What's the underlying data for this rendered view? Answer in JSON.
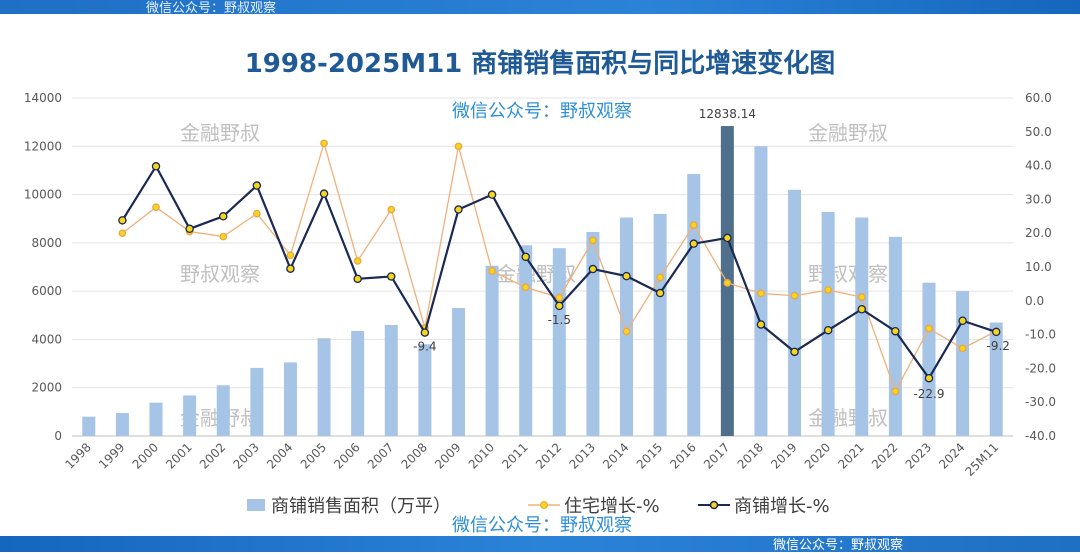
{
  "watermarks": {
    "top_bar": "微信公众号：野叔观察",
    "bottom_bar": "微信公众号：野叔观察",
    "center_top": "微信公众号：野叔观察",
    "center_bottom": "微信公众号：野叔观察",
    "grey_1": "金融野叔",
    "grey_2": "金融野叔",
    "grey_3": "野叔观察",
    "grey_4": "野叔观察",
    "grey_5": "金融野叔",
    "grey_6": "金融野叔",
    "grey_7": "金融野叔"
  },
  "colors": {
    "bar": "#a5c4e6",
    "bar_highlight": "#4f6f8c",
    "residential_line": "#f0b07a",
    "residential_marker": "#f7d51a",
    "commercial_line": "#1b2a52",
    "commercial_marker": "#f7d51a",
    "title": "#1f5a96"
  },
  "chart_data": {
    "type": "bar+line",
    "title": "1998-2025M11 商铺销售面积与同比增速变化图",
    "categories": [
      "1998",
      "1999",
      "2000",
      "2001",
      "2002",
      "2003",
      "2004",
      "2005",
      "2006",
      "2007",
      "2008",
      "2009",
      "2010",
      "2011",
      "2012",
      "2013",
      "2014",
      "2015",
      "2016",
      "2017",
      "2018",
      "2019",
      "2020",
      "2021",
      "2022",
      "2023",
      "2024",
      "25M11"
    ],
    "left_axis": {
      "ylim": [
        0,
        14000
      ],
      "ticks": [
        "0",
        "2000",
        "4000",
        "6000",
        "8000",
        "10000",
        "12000",
        "14000"
      ]
    },
    "right_axis": {
      "ylim": [
        -40,
        60
      ],
      "ticks": [
        "-40.0",
        "-30.0",
        "-20.0",
        "-10.0",
        "0.0",
        "10.0",
        "20.0",
        "30.0",
        "40.0",
        "50.0",
        "60.0"
      ]
    },
    "series": [
      {
        "name": "商铺销售面积（万平）",
        "kind": "bar",
        "axis": "left",
        "values": [
          800,
          950,
          1380,
          1680,
          2100,
          2820,
          3050,
          4050,
          4350,
          4600,
          3800,
          5300,
          7050,
          7900,
          7780,
          8450,
          9050,
          9200,
          10850,
          12838.14,
          12000,
          10200,
          9280,
          9050,
          8250,
          6350,
          6000,
          4700
        ]
      },
      {
        "name": "住宅增长-%",
        "kind": "line",
        "axis": "right",
        "values": [
          null,
          20.0,
          27.7,
          20.5,
          19.0,
          25.8,
          13.5,
          46.6,
          11.8,
          27.0,
          -8.0,
          45.7,
          8.8,
          4.0,
          0.9,
          17.9,
          -9.1,
          6.9,
          22.4,
          5.3,
          2.2,
          1.5,
          3.2,
          1.1,
          -26.8,
          -8.2,
          -14.1,
          -9.0
        ]
      },
      {
        "name": "商铺增长-%",
        "kind": "line",
        "axis": "right",
        "values": [
          null,
          23.8,
          39.8,
          21.3,
          25.0,
          34.1,
          9.5,
          31.7,
          6.5,
          7.2,
          -9.4,
          27.0,
          31.4,
          13.0,
          -1.5,
          9.4,
          7.3,
          2.3,
          16.9,
          18.6,
          -7.0,
          -15.1,
          -8.7,
          -2.5,
          -9.0,
          -22.9,
          -5.9,
          -9.2
        ]
      }
    ],
    "annotations": [
      {
        "category": "2017",
        "series": "商铺销售面积（万平）",
        "text": "12838.14"
      },
      {
        "category": "2008",
        "series": "商铺增长-%",
        "text": "-9.4"
      },
      {
        "category": "2012",
        "series": "商铺增长-%",
        "text": "-1.5"
      },
      {
        "category": "2023",
        "series": "商铺增长-%",
        "text": "-22.9"
      },
      {
        "category": "25M11",
        "series": "商铺增长-%",
        "text": "-9.2"
      }
    ],
    "legend": [
      "商铺销售面积（万平）",
      "住宅增长-%",
      "商铺增长-%"
    ],
    "legend_position": "bottom"
  }
}
